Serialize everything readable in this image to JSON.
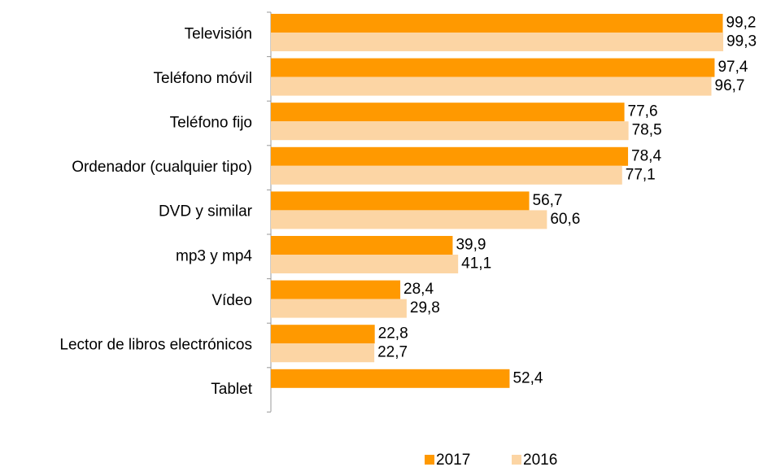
{
  "chart_data": {
    "type": "hbar",
    "categories": [
      "Televisión",
      "Teléfono móvil",
      "Teléfono fijo",
      "Ordenador (cualquier tipo)",
      "DVD y similar",
      "mp3 y mp4",
      "Vídeo",
      "Lector de libros electrónicos",
      "Tablet"
    ],
    "series": [
      {
        "name": "2017",
        "color": "#ff9900",
        "values": [
          99.2,
          97.4,
          77.6,
          78.4,
          56.7,
          39.9,
          28.4,
          22.8,
          52.4
        ],
        "value_labels": [
          "99,2",
          "97,4",
          "77,6",
          "78,4",
          "56,7",
          "39,9",
          "28,4",
          "22,8",
          "52,4"
        ]
      },
      {
        "name": "2016",
        "color": "#fcd5a4",
        "values": [
          99.3,
          96.7,
          78.5,
          77.1,
          60.6,
          41.1,
          29.8,
          22.7,
          null
        ],
        "value_labels": [
          "99,3",
          "96,7",
          "78,5",
          "77,1",
          "60,6",
          "41,1",
          "29,8",
          "22,7",
          null
        ]
      }
    ],
    "xlim": [
      0,
      100
    ],
    "legend": "bottom"
  }
}
